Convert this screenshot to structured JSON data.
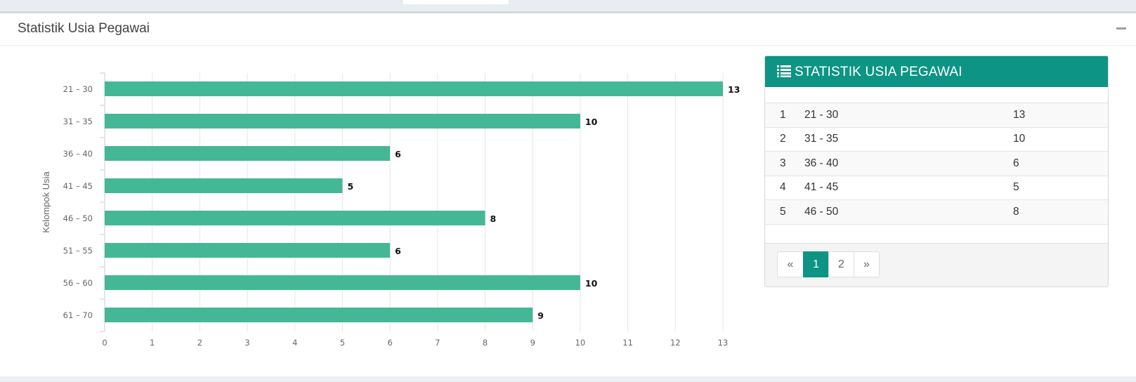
{
  "panel": {
    "title": "Statistik Usia Pegawai"
  },
  "chart_data": {
    "type": "bar",
    "orientation": "horizontal",
    "categories": [
      "21 – 30",
      "31 – 35",
      "36 – 40",
      "41 – 45",
      "46 – 50",
      "51 – 55",
      "56 – 60",
      "61 – 70"
    ],
    "values": [
      13,
      10,
      6,
      5,
      8,
      6,
      10,
      9
    ],
    "ylabel": "Kelompok Usia",
    "xlabel": "",
    "xlim": [
      0,
      13
    ],
    "xticks": [
      0,
      1,
      2,
      3,
      4,
      5,
      6,
      7,
      8,
      9,
      10,
      11,
      12,
      13
    ],
    "grid": true,
    "bar_color": "#44b896",
    "data_labels": true
  },
  "table": {
    "title": "STATISTIK USIA PEGAWAI",
    "rows": [
      {
        "no": "1",
        "range": "21 - 30",
        "count": "13"
      },
      {
        "no": "2",
        "range": "31 - 35",
        "count": "10"
      },
      {
        "no": "3",
        "range": "36 - 40",
        "count": "6"
      },
      {
        "no": "4",
        "range": "41 - 45",
        "count": "5"
      },
      {
        "no": "5",
        "range": "46 - 50",
        "count": "8"
      }
    ],
    "pager": {
      "prev": "«",
      "pages": [
        "1",
        "2"
      ],
      "active": "1",
      "next": "»"
    }
  },
  "colors": {
    "accent": "#0e9484",
    "bar": "#44b896"
  }
}
